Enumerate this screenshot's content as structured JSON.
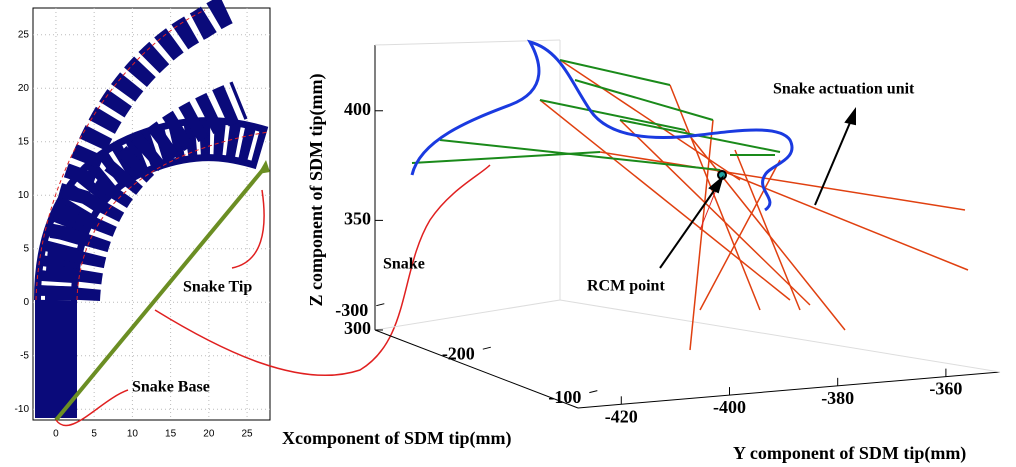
{
  "chart_data": [
    {
      "type": "snake",
      "annotations": [
        "Snake Tip",
        "Snake Base"
      ],
      "xlim": [
        -3,
        28
      ],
      "xticks": [
        0,
        5,
        10,
        15,
        20,
        25
      ],
      "ylim": [
        -11,
        27.5
      ],
      "yticks": [
        -10,
        -5,
        0,
        5,
        10,
        15,
        20,
        25
      ],
      "grid": true
    },
    {
      "type": "line3d",
      "xlabel": "Xcomponent of SDM tip(mm)",
      "ylabel": "Y component of SDM tip(mm)",
      "zlabel": "Z component of SDM tip(mm)",
      "annotations": [
        "Snake",
        "RCM point",
        "Snake actuation unit"
      ],
      "xlim": [
        -320,
        -90
      ],
      "xticks": [
        -300,
        -200,
        -100
      ],
      "ylim": [
        -428,
        -350
      ],
      "yticks": [
        -420,
        -400,
        -380,
        -360
      ],
      "zlim": [
        300,
        430
      ],
      "zticks": [
        300,
        350,
        400
      ]
    }
  ]
}
